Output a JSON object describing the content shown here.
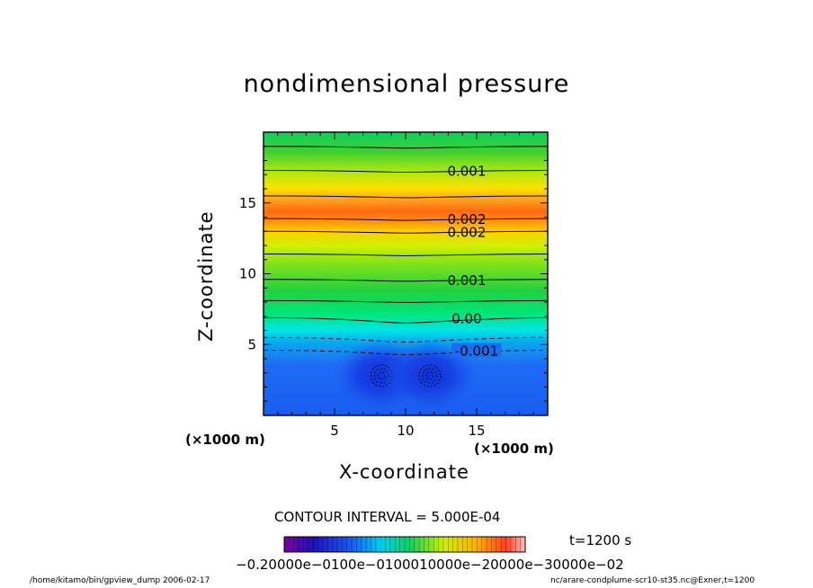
{
  "chart_data": {
    "type": "heatmap",
    "title": "nondimensional pressure",
    "xlabel": "X-coordinate",
    "ylabel": "Z-coordinate",
    "x_unit": "(×1000 m)",
    "x_unit_repeat": "(×1000 m)",
    "xlim": [
      0,
      20
    ],
    "ylim": [
      0,
      20
    ],
    "x_ticks": [
      "5",
      "10",
      "15"
    ],
    "y_ticks": [
      "5",
      "10",
      "15"
    ],
    "contour_interval": "CONTOUR INTERVAL = 5.000E-04",
    "time_label": "t=1200 s",
    "colorbar_labels": "−0.20000e−0100e−0100010000e−20000e−30000e−02",
    "colorbar_range": [
      -0.002,
      0.003
    ],
    "contour_labels": [
      {
        "text": "0.001",
        "x": 14.3,
        "z": 17.3
      },
      {
        "text": "0.002",
        "x": 14.3,
        "z": 13.9
      },
      {
        "text": "0.002",
        "x": 14.3,
        "z": 13.0
      },
      {
        "text": "0.001",
        "x": 14.3,
        "z": 9.6
      },
      {
        "text": "0.00",
        "x": 14.3,
        "z": 6.9
      },
      {
        "text": "-0.001",
        "x": 15.0,
        "z": 4.6
      }
    ],
    "contours_solid_z": [
      19.0,
      17.3,
      15.5,
      13.9,
      13.0,
      11.4,
      9.6,
      8.1,
      6.9
    ],
    "contours_dashed_z": [
      5.5,
      4.6
    ],
    "negative_centers": [
      {
        "x": 8.3,
        "z": 2.8
      },
      {
        "x": 11.7,
        "z": 2.8
      }
    ]
  },
  "footer": {
    "left": "/home/kitamo/bin/gpview_dump  2006-02-17",
    "right": "nc/arare-condplume-scr10-st35.nc@Exner,t=1200"
  }
}
